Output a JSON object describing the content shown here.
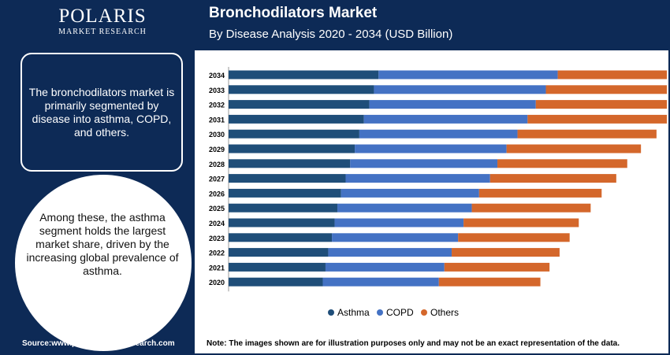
{
  "brand": {
    "name": "POLARIS",
    "tagline": "MARKET RESEARCH"
  },
  "header": {
    "title": "Bronchodilators Market",
    "subtitle": "By Disease Analysis 2020 - 2034 (USD Billion)"
  },
  "left_panel": {
    "box_text": "The bronchodilators market is primarily segmented by disease into asthma, COPD, and others.",
    "circle_text": "Among these, the asthma segment holds the largest market share, driven by the increasing global prevalence of asthma."
  },
  "footer": {
    "source": "Source:www.polarismarketresearch.com",
    "note": "Note: The images shown are for illustration purposes only and may not be an exact representation of the data."
  },
  "colors": {
    "navy": "#0d2a56",
    "asthma": "#1f4e79",
    "copd": "#4472c4",
    "others": "#d4672b"
  },
  "chart_data": {
    "type": "bar",
    "orientation": "horizontal",
    "stacked": true,
    "categories": [
      "2034",
      "2033",
      "2032",
      "2031",
      "2030",
      "2029",
      "2028",
      "2027",
      "2026",
      "2025",
      "2024",
      "2023",
      "2022",
      "2021",
      "2020"
    ],
    "series": [
      {
        "name": "Asthma",
        "color": "#1f4e79",
        "values": [
          16.4,
          15.9,
          15.4,
          14.8,
          14.3,
          13.8,
          13.3,
          12.8,
          12.3,
          11.9,
          11.6,
          11.3,
          10.9,
          10.6,
          10.3
        ]
      },
      {
        "name": "COPD",
        "color": "#4472c4",
        "values": [
          19.6,
          18.8,
          18.2,
          17.9,
          17.3,
          16.6,
          16.1,
          15.8,
          15.1,
          14.7,
          14.1,
          13.8,
          13.5,
          13.0,
          12.7
        ]
      },
      {
        "name": "Others",
        "color": "#d4672b",
        "values": [
          17.6,
          16.9,
          16.3,
          15.8,
          15.2,
          14.7,
          14.2,
          13.8,
          13.4,
          13.0,
          12.6,
          12.2,
          11.8,
          11.5,
          11.1
        ]
      }
    ],
    "legend": [
      "Asthma",
      "COPD",
      "Others"
    ],
    "legend_position": "bottom",
    "xlabel": "",
    "ylabel": "",
    "grid": false
  }
}
